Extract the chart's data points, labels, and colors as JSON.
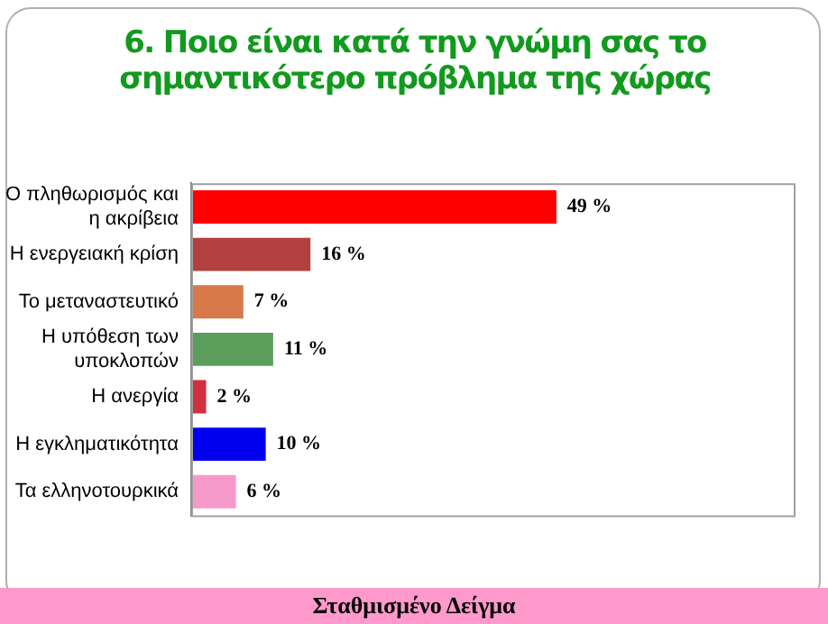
{
  "chart_data": {
    "type": "bar",
    "orientation": "horizontal",
    "title": "6. Ποιο είναι κατά την γνώμη σας το σημαντικότερο πρόβλημα της χώρας",
    "categories": [
      "Ο πληθωρισμός και η ακρίβεια",
      "Η ενεργειακή κρίση",
      "Το μεταναστευτικό",
      "Η υπόθεση των υποκλοπών",
      "Η ανεργία",
      "Η εγκληματικότητα",
      "Τα ελληνοτουρκικά"
    ],
    "values": [
      49,
      16,
      7,
      11,
      2,
      10,
      6
    ],
    "colors": [
      "#ff0000",
      "#b3403f",
      "#d8794a",
      "#5c9e5c",
      "#d2303f",
      "#0000ee",
      "#f59ac8"
    ],
    "value_labels": [
      "49 %",
      "16 %",
      "7 %",
      "11 %",
      "2 %",
      "10 %",
      "6 %"
    ],
    "tick_labels": "y",
    "grid": false,
    "annotations": [
      "Σταθμισμένο Δείγμα"
    ]
  }
}
